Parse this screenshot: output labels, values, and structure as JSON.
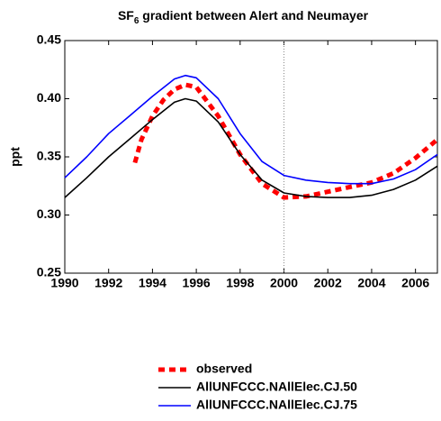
{
  "chart_data": {
    "type": "line",
    "title_main": "SF",
    "title_sub": "6",
    "title_rest": " gradient between Alert and Neumayer",
    "ylabel": "ppt",
    "xlim": [
      1990,
      2007
    ],
    "xticks": [
      1990,
      1992,
      1994,
      1996,
      1998,
      2000,
      2002,
      2004,
      2006
    ],
    "ylim": [
      0.25,
      0.45
    ],
    "yticks": [
      {
        "value": 0.25,
        "label": "0.25"
      },
      {
        "value": 0.3,
        "label": "0.30"
      },
      {
        "value": 0.35,
        "label": "0.35"
      },
      {
        "value": 0.4,
        "label": "0.40"
      },
      {
        "value": 0.45,
        "label": "0.45"
      }
    ],
    "vline_x": 2000,
    "legend": "bottom",
    "series": [
      {
        "name": "observed",
        "color": "#ff0000",
        "dashed": true,
        "x": [
          1993.2,
          1993.5,
          1994,
          1994.5,
          1995,
          1995.5,
          1996,
          1997,
          1998,
          1999,
          2000,
          2001,
          2002,
          2003,
          2004,
          2005,
          2006,
          2007
        ],
        "values": [
          0.345,
          0.365,
          0.385,
          0.399,
          0.408,
          0.412,
          0.41,
          0.385,
          0.352,
          0.327,
          0.315,
          0.316,
          0.32,
          0.324,
          0.328,
          0.336,
          0.349,
          0.365
        ]
      },
      {
        "name": "AllUNFCCC.NAllElec.CJ.50",
        "color": "#000000",
        "dashed": false,
        "x": [
          1990,
          1991,
          1992,
          1993,
          1994,
          1995,
          1995.5,
          1996,
          1997,
          1998,
          1999,
          2000,
          2001,
          2002,
          2003,
          2004,
          2005,
          2006,
          2007
        ],
        "values": [
          0.315,
          0.332,
          0.35,
          0.366,
          0.382,
          0.397,
          0.4,
          0.398,
          0.38,
          0.352,
          0.33,
          0.319,
          0.316,
          0.315,
          0.315,
          0.317,
          0.322,
          0.33,
          0.342
        ]
      },
      {
        "name": "AllUNFCCC.NAllElec.CJ.75",
        "color": "#0000ff",
        "dashed": false,
        "x": [
          1990,
          1991,
          1992,
          1993,
          1994,
          1995,
          1995.5,
          1996,
          1997,
          1998,
          1999,
          2000,
          2001,
          2002,
          2003,
          2004,
          2005,
          2006,
          2007
        ],
        "values": [
          0.332,
          0.35,
          0.37,
          0.386,
          0.402,
          0.417,
          0.42,
          0.418,
          0.4,
          0.37,
          0.346,
          0.334,
          0.33,
          0.328,
          0.327,
          0.327,
          0.331,
          0.339,
          0.352
        ]
      }
    ]
  }
}
